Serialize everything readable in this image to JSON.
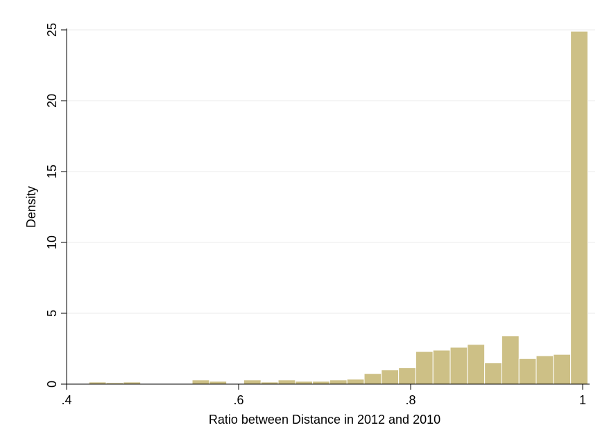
{
  "chart_data": {
    "type": "bar",
    "title": "",
    "xlabel": "Ratio between Distance in 2012 and 2010",
    "ylabel": "Density",
    "xlim": [
      0.4,
      1.0
    ],
    "ylim": [
      0,
      25
    ],
    "xticks": [
      {
        "value": 0.4,
        "label": ".4"
      },
      {
        "value": 0.6,
        "label": ".6"
      },
      {
        "value": 0.8,
        "label": ".8"
      },
      {
        "value": 1.0,
        "label": "1"
      }
    ],
    "yticks": [
      {
        "value": 0,
        "label": "0"
      },
      {
        "value": 5,
        "label": "5"
      },
      {
        "value": 10,
        "label": "10"
      },
      {
        "value": 15,
        "label": "15"
      },
      {
        "value": 20,
        "label": "20"
      },
      {
        "value": 25,
        "label": "25"
      }
    ],
    "grid": true,
    "bar_color": "#cdc086",
    "bin_width": 0.02,
    "bins": [
      {
        "x0": 0.426,
        "value": 0.15
      },
      {
        "x0": 0.446,
        "value": 0.1
      },
      {
        "x0": 0.466,
        "value": 0.15
      },
      {
        "x0": 0.546,
        "value": 0.3
      },
      {
        "x0": 0.566,
        "value": 0.2
      },
      {
        "x0": 0.606,
        "value": 0.3
      },
      {
        "x0": 0.626,
        "value": 0.15
      },
      {
        "x0": 0.646,
        "value": 0.3
      },
      {
        "x0": 0.666,
        "value": 0.2
      },
      {
        "x0": 0.686,
        "value": 0.2
      },
      {
        "x0": 0.706,
        "value": 0.3
      },
      {
        "x0": 0.726,
        "value": 0.35
      },
      {
        "x0": 0.746,
        "value": 0.75
      },
      {
        "x0": 0.766,
        "value": 1.0
      },
      {
        "x0": 0.786,
        "value": 1.15
      },
      {
        "x0": 0.806,
        "value": 2.3
      },
      {
        "x0": 0.826,
        "value": 2.4
      },
      {
        "x0": 0.846,
        "value": 2.6
      },
      {
        "x0": 0.866,
        "value": 2.8
      },
      {
        "x0": 0.886,
        "value": 1.5
      },
      {
        "x0": 0.906,
        "value": 3.4
      },
      {
        "x0": 0.926,
        "value": 1.8
      },
      {
        "x0": 0.946,
        "value": 2.0
      },
      {
        "x0": 0.966,
        "value": 2.1
      },
      {
        "x0": 0.986,
        "value": 24.9
      }
    ]
  }
}
